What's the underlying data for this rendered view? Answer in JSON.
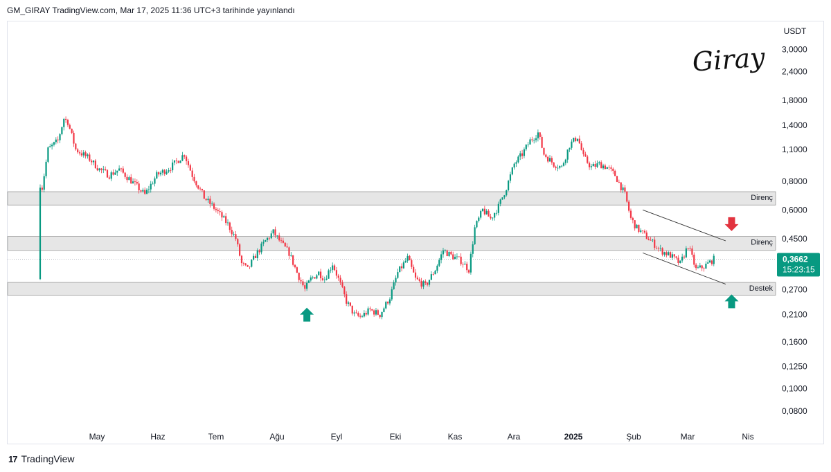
{
  "header": {
    "text": "GM_GIRAY TradingView.com, Mar 17, 2025 11:36 UTC+3 tarihinde yayınlandı"
  },
  "footer": {
    "brand": "TradingView"
  },
  "signature": "Giray",
  "colors": {
    "up": "#089981",
    "down": "#f23645",
    "zone": "#e6e6e6",
    "price_tag": "#089981",
    "arrow_up": "#089981",
    "arrow_down": "#e2333f"
  },
  "chart_data": {
    "type": "candlestick",
    "currency": "USDT",
    "scale": "log",
    "ylim": [
      0.07,
      3.6
    ],
    "y_ticks": [
      {
        "value": 3.0,
        "label": "3,0000"
      },
      {
        "value": 2.4,
        "label": "2,4000"
      },
      {
        "value": 1.8,
        "label": "1,8000"
      },
      {
        "value": 1.4,
        "label": "1,4000"
      },
      {
        "value": 1.1,
        "label": "1,1000"
      },
      {
        "value": 0.8,
        "label": "0,8000"
      },
      {
        "value": 0.6,
        "label": "0,6000"
      },
      {
        "value": 0.45,
        "label": "0,4500"
      },
      {
        "value": 0.27,
        "label": "0,2700"
      },
      {
        "value": 0.21,
        "label": "0,2100"
      },
      {
        "value": 0.16,
        "label": "0,1600"
      },
      {
        "value": 0.125,
        "label": "0,1250"
      },
      {
        "value": 0.1,
        "label": "0,1000"
      },
      {
        "value": 0.08,
        "label": "0,0800"
      }
    ],
    "x_labels": [
      "May",
      "Haz",
      "Tem",
      "Ağu",
      "Eyl",
      "Eki",
      "Kas",
      "Ara",
      "2025",
      "Şub",
      "Mar",
      "Nis"
    ],
    "x_start": "2024-04-10",
    "x_end": "2025-04-05",
    "price_path": [
      [
        "2024-04-10",
        0.3
      ],
      [
        "2024-04-11",
        0.75
      ],
      [
        "2024-04-14",
        1.1
      ],
      [
        "2024-04-19",
        1.2
      ],
      [
        "2024-04-22",
        1.5
      ],
      [
        "2024-04-24",
        1.45
      ],
      [
        "2024-04-28",
        1.1
      ],
      [
        "2024-05-05",
        1.0
      ],
      [
        "2024-05-10",
        0.9
      ],
      [
        "2024-05-15",
        0.85
      ],
      [
        "2024-05-20",
        0.9
      ],
      [
        "2024-05-25",
        0.82
      ],
      [
        "2024-06-02",
        0.7
      ],
      [
        "2024-06-08",
        0.85
      ],
      [
        "2024-06-15",
        0.92
      ],
      [
        "2024-06-22",
        1.05
      ],
      [
        "2024-06-26",
        0.85
      ],
      [
        "2024-07-02",
        0.68
      ],
      [
        "2024-07-08",
        0.6
      ],
      [
        "2024-07-14",
        0.52
      ],
      [
        "2024-07-18",
        0.45
      ],
      [
        "2024-07-21",
        0.35
      ],
      [
        "2024-07-24",
        0.33
      ],
      [
        "2024-07-28",
        0.38
      ],
      [
        "2024-08-02",
        0.44
      ],
      [
        "2024-08-06",
        0.48
      ],
      [
        "2024-08-10",
        0.43
      ],
      [
        "2024-08-14",
        0.39
      ],
      [
        "2024-08-18",
        0.32
      ],
      [
        "2024-08-22",
        0.27
      ],
      [
        "2024-08-25",
        0.3
      ],
      [
        "2024-08-29",
        0.32
      ],
      [
        "2024-09-01",
        0.3
      ],
      [
        "2024-09-05",
        0.35
      ],
      [
        "2024-09-08",
        0.3
      ],
      [
        "2024-09-12",
        0.24
      ],
      [
        "2024-09-16",
        0.21
      ],
      [
        "2024-09-19",
        0.205
      ],
      [
        "2024-09-24",
        0.22
      ],
      [
        "2024-09-29",
        0.21
      ],
      [
        "2024-10-04",
        0.25
      ],
      [
        "2024-10-08",
        0.32
      ],
      [
        "2024-10-13",
        0.37
      ],
      [
        "2024-10-17",
        0.3
      ],
      [
        "2024-10-22",
        0.28
      ],
      [
        "2024-10-27",
        0.33
      ],
      [
        "2024-10-31",
        0.4
      ],
      [
        "2024-11-04",
        0.38
      ],
      [
        "2024-11-09",
        0.36
      ],
      [
        "2024-11-13",
        0.33
      ],
      [
        "2024-11-16",
        0.5
      ],
      [
        "2024-11-20",
        0.6
      ],
      [
        "2024-11-24",
        0.55
      ],
      [
        "2024-11-28",
        0.62
      ],
      [
        "2024-12-02",
        0.75
      ],
      [
        "2024-12-06",
        0.95
      ],
      [
        "2024-12-10",
        1.05
      ],
      [
        "2024-12-14",
        1.2
      ],
      [
        "2024-12-18",
        1.3
      ],
      [
        "2024-12-21",
        1.05
      ],
      [
        "2024-12-26",
        0.95
      ],
      [
        "2024-12-30",
        0.92
      ],
      [
        "2025-01-03",
        1.15
      ],
      [
        "2025-01-07",
        1.25
      ],
      [
        "2025-01-10",
        1.02
      ],
      [
        "2025-01-14",
        0.92
      ],
      [
        "2025-01-18",
        0.95
      ],
      [
        "2025-01-22",
        0.92
      ],
      [
        "2025-01-26",
        0.85
      ],
      [
        "2025-01-31",
        0.7
      ],
      [
        "2025-02-03",
        0.55
      ],
      [
        "2025-02-06",
        0.5
      ],
      [
        "2025-02-12",
        0.45
      ],
      [
        "2025-02-18",
        0.4
      ],
      [
        "2025-02-23",
        0.38
      ],
      [
        "2025-02-28",
        0.35
      ],
      [
        "2025-03-04",
        0.42
      ],
      [
        "2025-03-08",
        0.33
      ],
      [
        "2025-03-12",
        0.34
      ],
      [
        "2025-03-17",
        0.3662
      ]
    ],
    "current": {
      "price_label": "0,3662",
      "time_label": "15:23:15",
      "value": 0.3662
    },
    "zones": [
      {
        "label": "Direnç",
        "low": 0.63,
        "high": 0.72
      },
      {
        "label": "Direnç",
        "low": 0.4,
        "high": 0.46
      },
      {
        "label": "Destek",
        "low": 0.255,
        "high": 0.29
      }
    ],
    "channel": {
      "upper": [
        [
          "2025-02-09",
          0.6
        ],
        [
          "2025-03-23",
          0.44
        ]
      ],
      "lower": [
        [
          "2025-02-09",
          0.39
        ],
        [
          "2025-03-23",
          0.285
        ]
      ]
    },
    "arrows": [
      {
        "dir": "up",
        "date": "2024-08-23",
        "price": 0.21
      },
      {
        "dir": "down",
        "date": "2025-03-26",
        "price": 0.52
      },
      {
        "dir": "up",
        "date": "2025-03-26",
        "price": 0.24
      }
    ]
  }
}
